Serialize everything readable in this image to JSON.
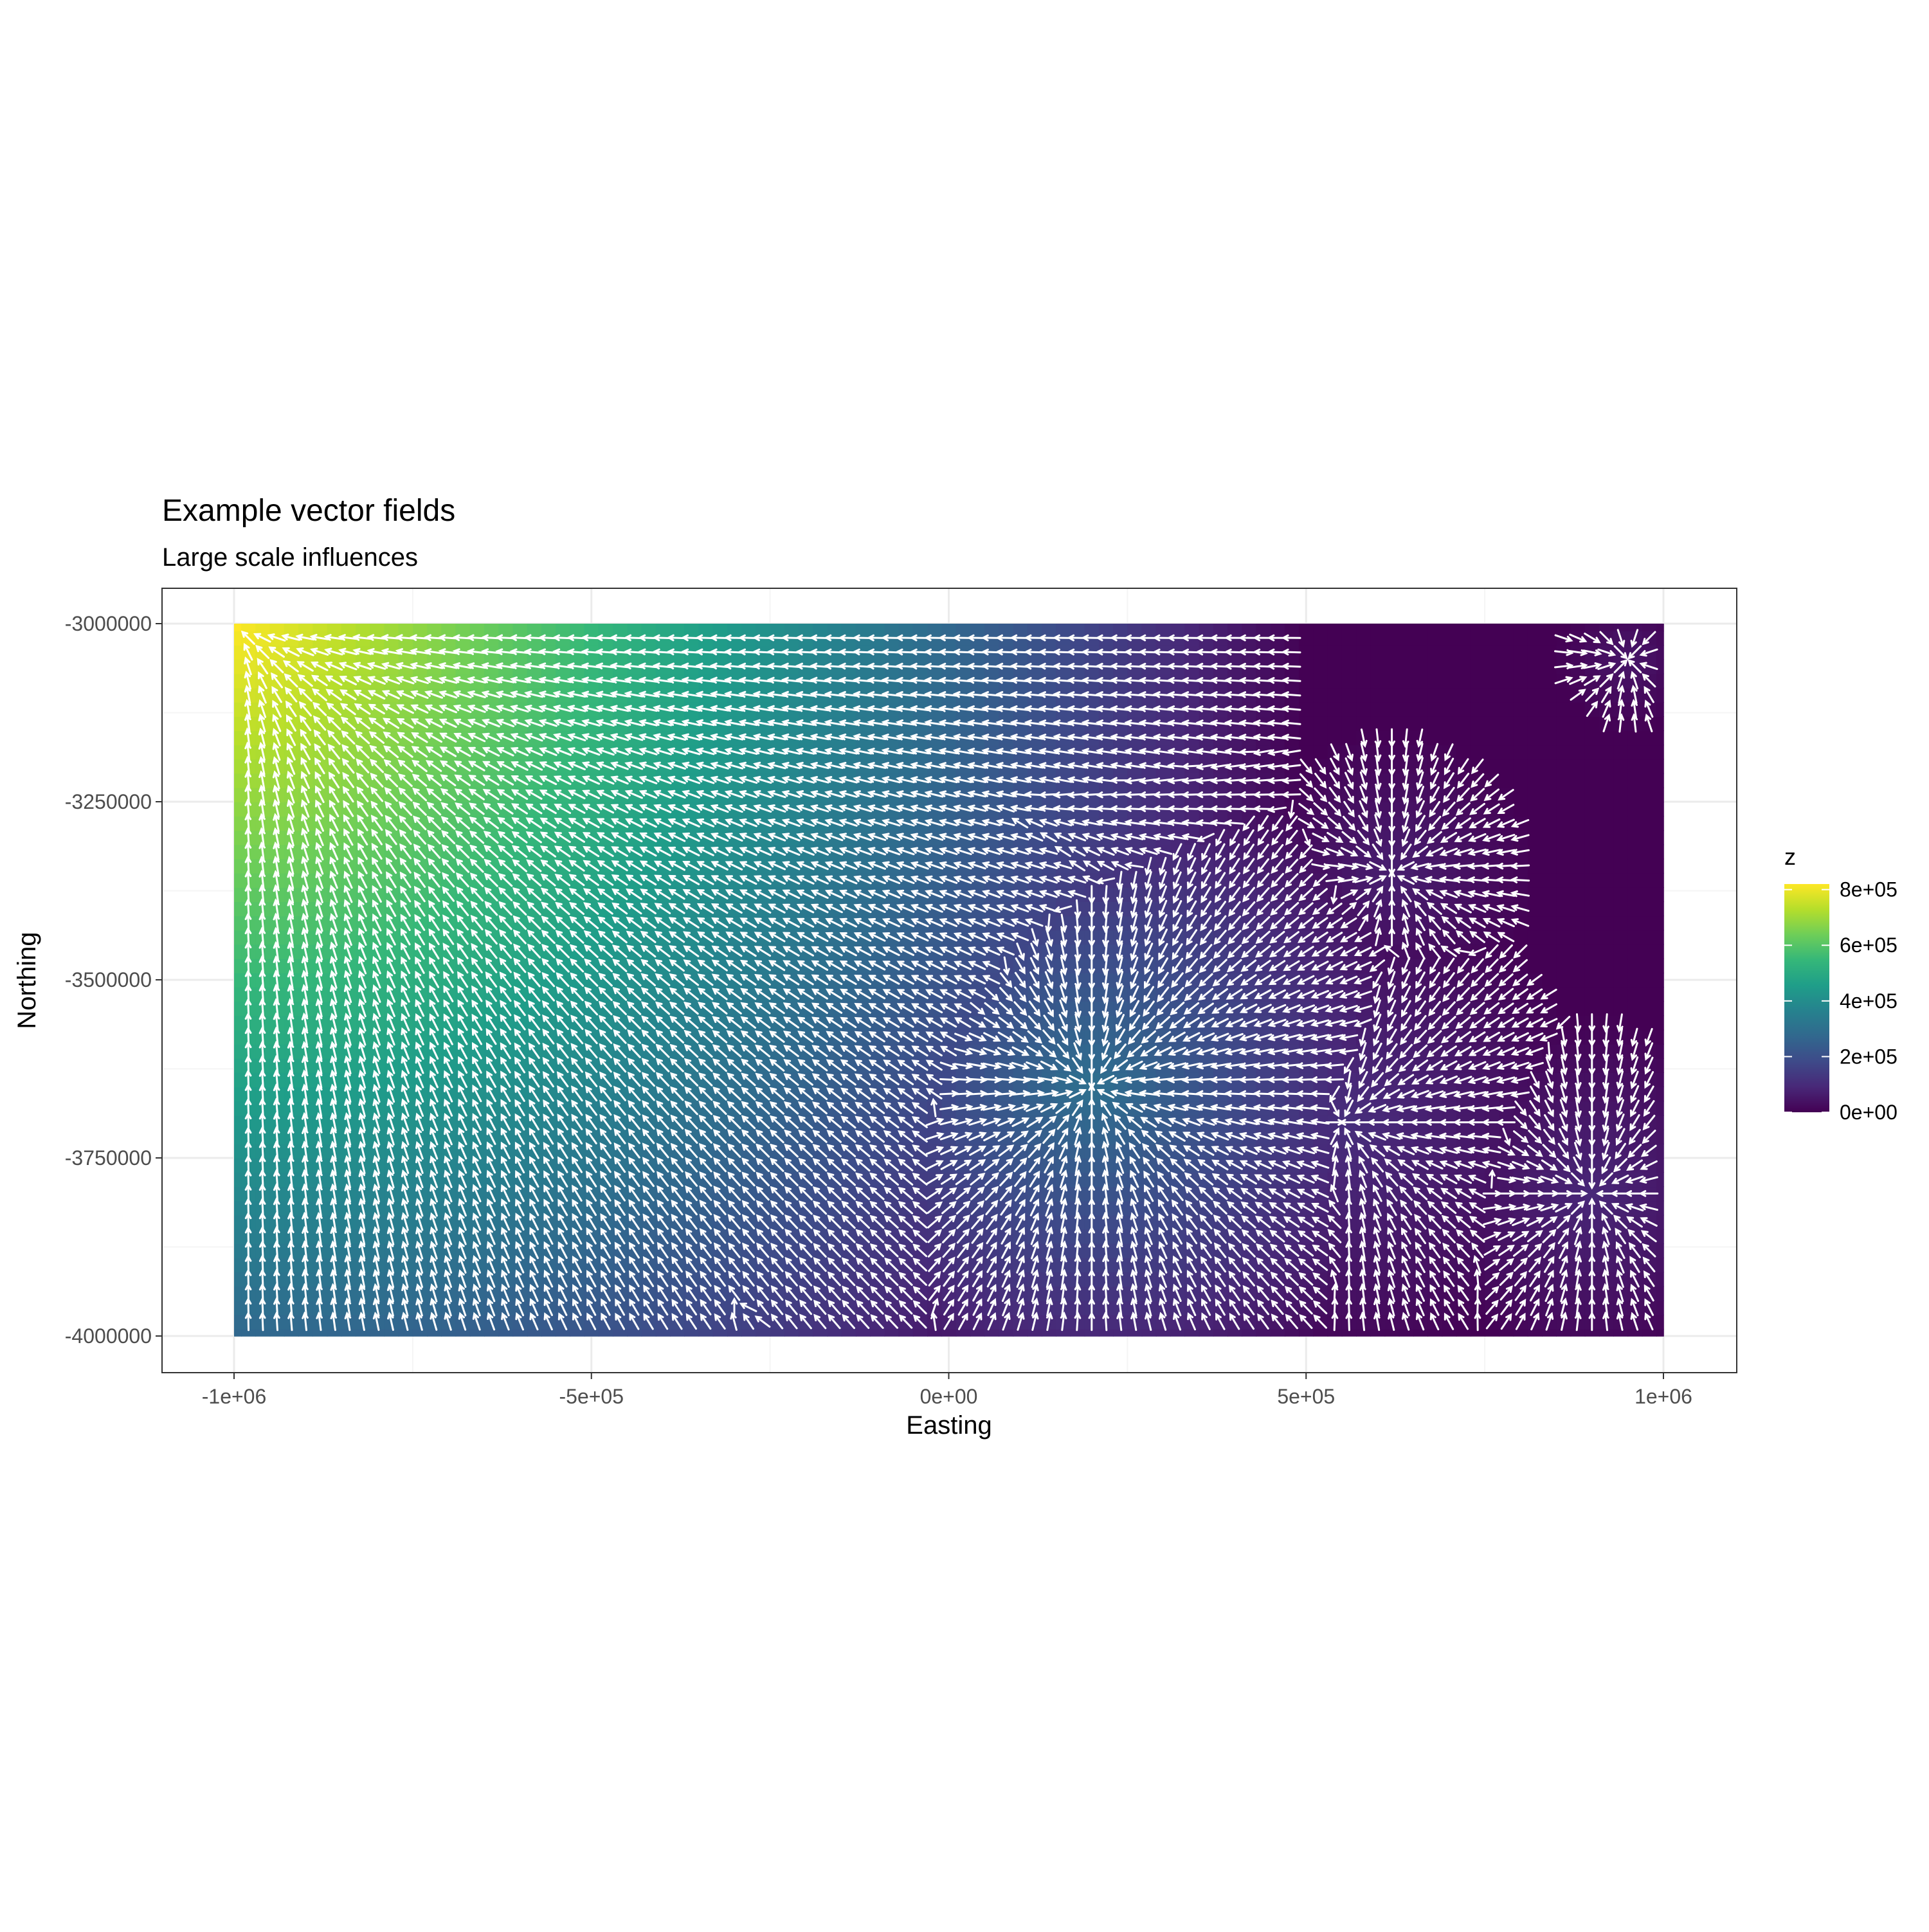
{
  "chart_data": {
    "type": "heatmap",
    "overlay": "vector-field",
    "title": "Example vector fields",
    "subtitle": "Large scale influences",
    "xlabel": "Easting",
    "ylabel": "Northing",
    "xlim": [
      -1000000,
      1000000
    ],
    "ylim": [
      -4000000,
      -3000000
    ],
    "x_ticks": [
      {
        "value": -1000000,
        "label": "-1e+06"
      },
      {
        "value": -500000,
        "label": "-5e+05"
      },
      {
        "value": 0,
        "label": "0e+00"
      },
      {
        "value": 500000,
        "label": "5e+05"
      },
      {
        "value": 1000000,
        "label": "1e+06"
      }
    ],
    "y_ticks": [
      {
        "value": -3000000,
        "label": "-3000000"
      },
      {
        "value": -3250000,
        "label": "-3250000"
      },
      {
        "value": -3500000,
        "label": "-3500000"
      },
      {
        "value": -3750000,
        "label": "-3750000"
      },
      {
        "value": -4000000,
        "label": "-4000000"
      }
    ],
    "grid": true,
    "legend": {
      "title": "z",
      "placement": "right",
      "palette": "viridis",
      "range": [
        0,
        820000
      ],
      "ticks": [
        {
          "value": 0,
          "label": "0e+00"
        },
        {
          "value": 200000,
          "label": "2e+05"
        },
        {
          "value": 400000,
          "label": "4e+05"
        },
        {
          "value": 600000,
          "label": "6e+05"
        },
        {
          "value": 800000,
          "label": "8e+05"
        }
      ]
    },
    "colors": {
      "viridis": [
        "#440154",
        "#482878",
        "#3e4a89",
        "#31688e",
        "#26828e",
        "#1f9e89",
        "#35b779",
        "#6ece58",
        "#b5de2b",
        "#fde725"
      ],
      "arrow": "#ffffff",
      "panel_border": "#333333",
      "grid_major": "#ebebeb",
      "grid_minor": "#f5f5f5"
    },
    "field_sources": [
      {
        "x": -1000000,
        "y": -3000000,
        "peak": 820000,
        "reach": 1500000
      },
      {
        "x": 200000,
        "y": -3650000,
        "peak": 300000,
        "reach": 500000
      },
      {
        "x": 50000,
        "y": -3250000,
        "peak": 230000,
        "reach": 450000
      },
      {
        "x": -300000,
        "y": -3950000,
        "peak": 180000,
        "reach": 300000
      },
      {
        "x": 550000,
        "y": -3700000,
        "peak": 110000,
        "reach": 350000
      },
      {
        "x": 900000,
        "y": -3800000,
        "peak": 90000,
        "reach": 250000
      },
      {
        "x": 620000,
        "y": -3350000,
        "peak": 70000,
        "reach": 200000
      },
      {
        "x": 950000,
        "y": -3050000,
        "peak": 50000,
        "reach": 100000
      }
    ],
    "arrow_grid_spacing": 20000
  }
}
